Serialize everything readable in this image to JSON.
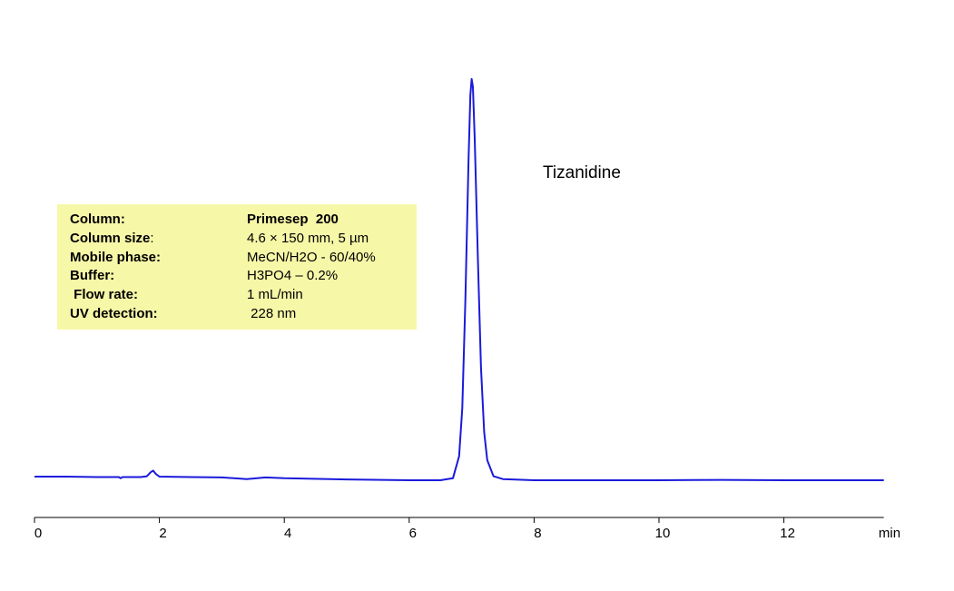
{
  "chart_data": {
    "type": "line",
    "xlabel": "min",
    "ylabel": "",
    "xlim": [
      0,
      13.6
    ],
    "xticks": [
      0,
      2,
      4,
      6,
      8,
      10,
      12
    ],
    "grid": false,
    "series_color": "#1a1adb",
    "peak_label": "Tizanidine",
    "series": [
      {
        "name": "",
        "points": [
          [
            0.0,
            0.009
          ],
          [
            0.5,
            0.009
          ],
          [
            1.0,
            0.008
          ],
          [
            1.35,
            0.008
          ],
          [
            1.38,
            0.005
          ],
          [
            1.41,
            0.008
          ],
          [
            1.7,
            0.008
          ],
          [
            1.8,
            0.01
          ],
          [
            1.86,
            0.02
          ],
          [
            1.9,
            0.024
          ],
          [
            1.94,
            0.016
          ],
          [
            2.0,
            0.009
          ],
          [
            2.5,
            0.008
          ],
          [
            3.0,
            0.007
          ],
          [
            3.4,
            0.003
          ],
          [
            3.7,
            0.007
          ],
          [
            4.0,
            0.005
          ],
          [
            5.0,
            0.002
          ],
          [
            6.0,
            0.0
          ],
          [
            6.5,
            0.0
          ],
          [
            6.7,
            0.005
          ],
          [
            6.8,
            0.06
          ],
          [
            6.85,
            0.18
          ],
          [
            6.9,
            0.45
          ],
          [
            6.95,
            0.8
          ],
          [
            6.98,
            0.96
          ],
          [
            7.0,
            1.0
          ],
          [
            7.02,
            0.98
          ],
          [
            7.05,
            0.85
          ],
          [
            7.1,
            0.55
          ],
          [
            7.15,
            0.28
          ],
          [
            7.2,
            0.12
          ],
          [
            7.25,
            0.05
          ],
          [
            7.35,
            0.01
          ],
          [
            7.5,
            0.003
          ],
          [
            8.0,
            0.0
          ],
          [
            9.0,
            0.0
          ],
          [
            10.0,
            0.0
          ],
          [
            11.0,
            0.001
          ],
          [
            12.0,
            0.0
          ],
          [
            13.6,
            0.0
          ]
        ]
      }
    ]
  },
  "conditions": [
    {
      "label": "Column:",
      "value": "Primesep  200",
      "bold_value": true
    },
    {
      "label": "Column size",
      "value": "4.6 × 150 mm, 5 µm",
      "bold_value": false,
      "label_suffix": ":"
    },
    {
      "label": "Mobile phase:",
      "value": "MeCN/H2O - 60/40%",
      "bold_value": false
    },
    {
      "label": "Buffer:",
      "value": "H3PO4 – 0.2%",
      "bold_value": false
    },
    {
      "label": " Flow rate:",
      "value": "1 mL/min",
      "bold_value": false
    },
    {
      "label": "UV detection:",
      "value": " 228 nm",
      "bold_value": false
    }
  ]
}
